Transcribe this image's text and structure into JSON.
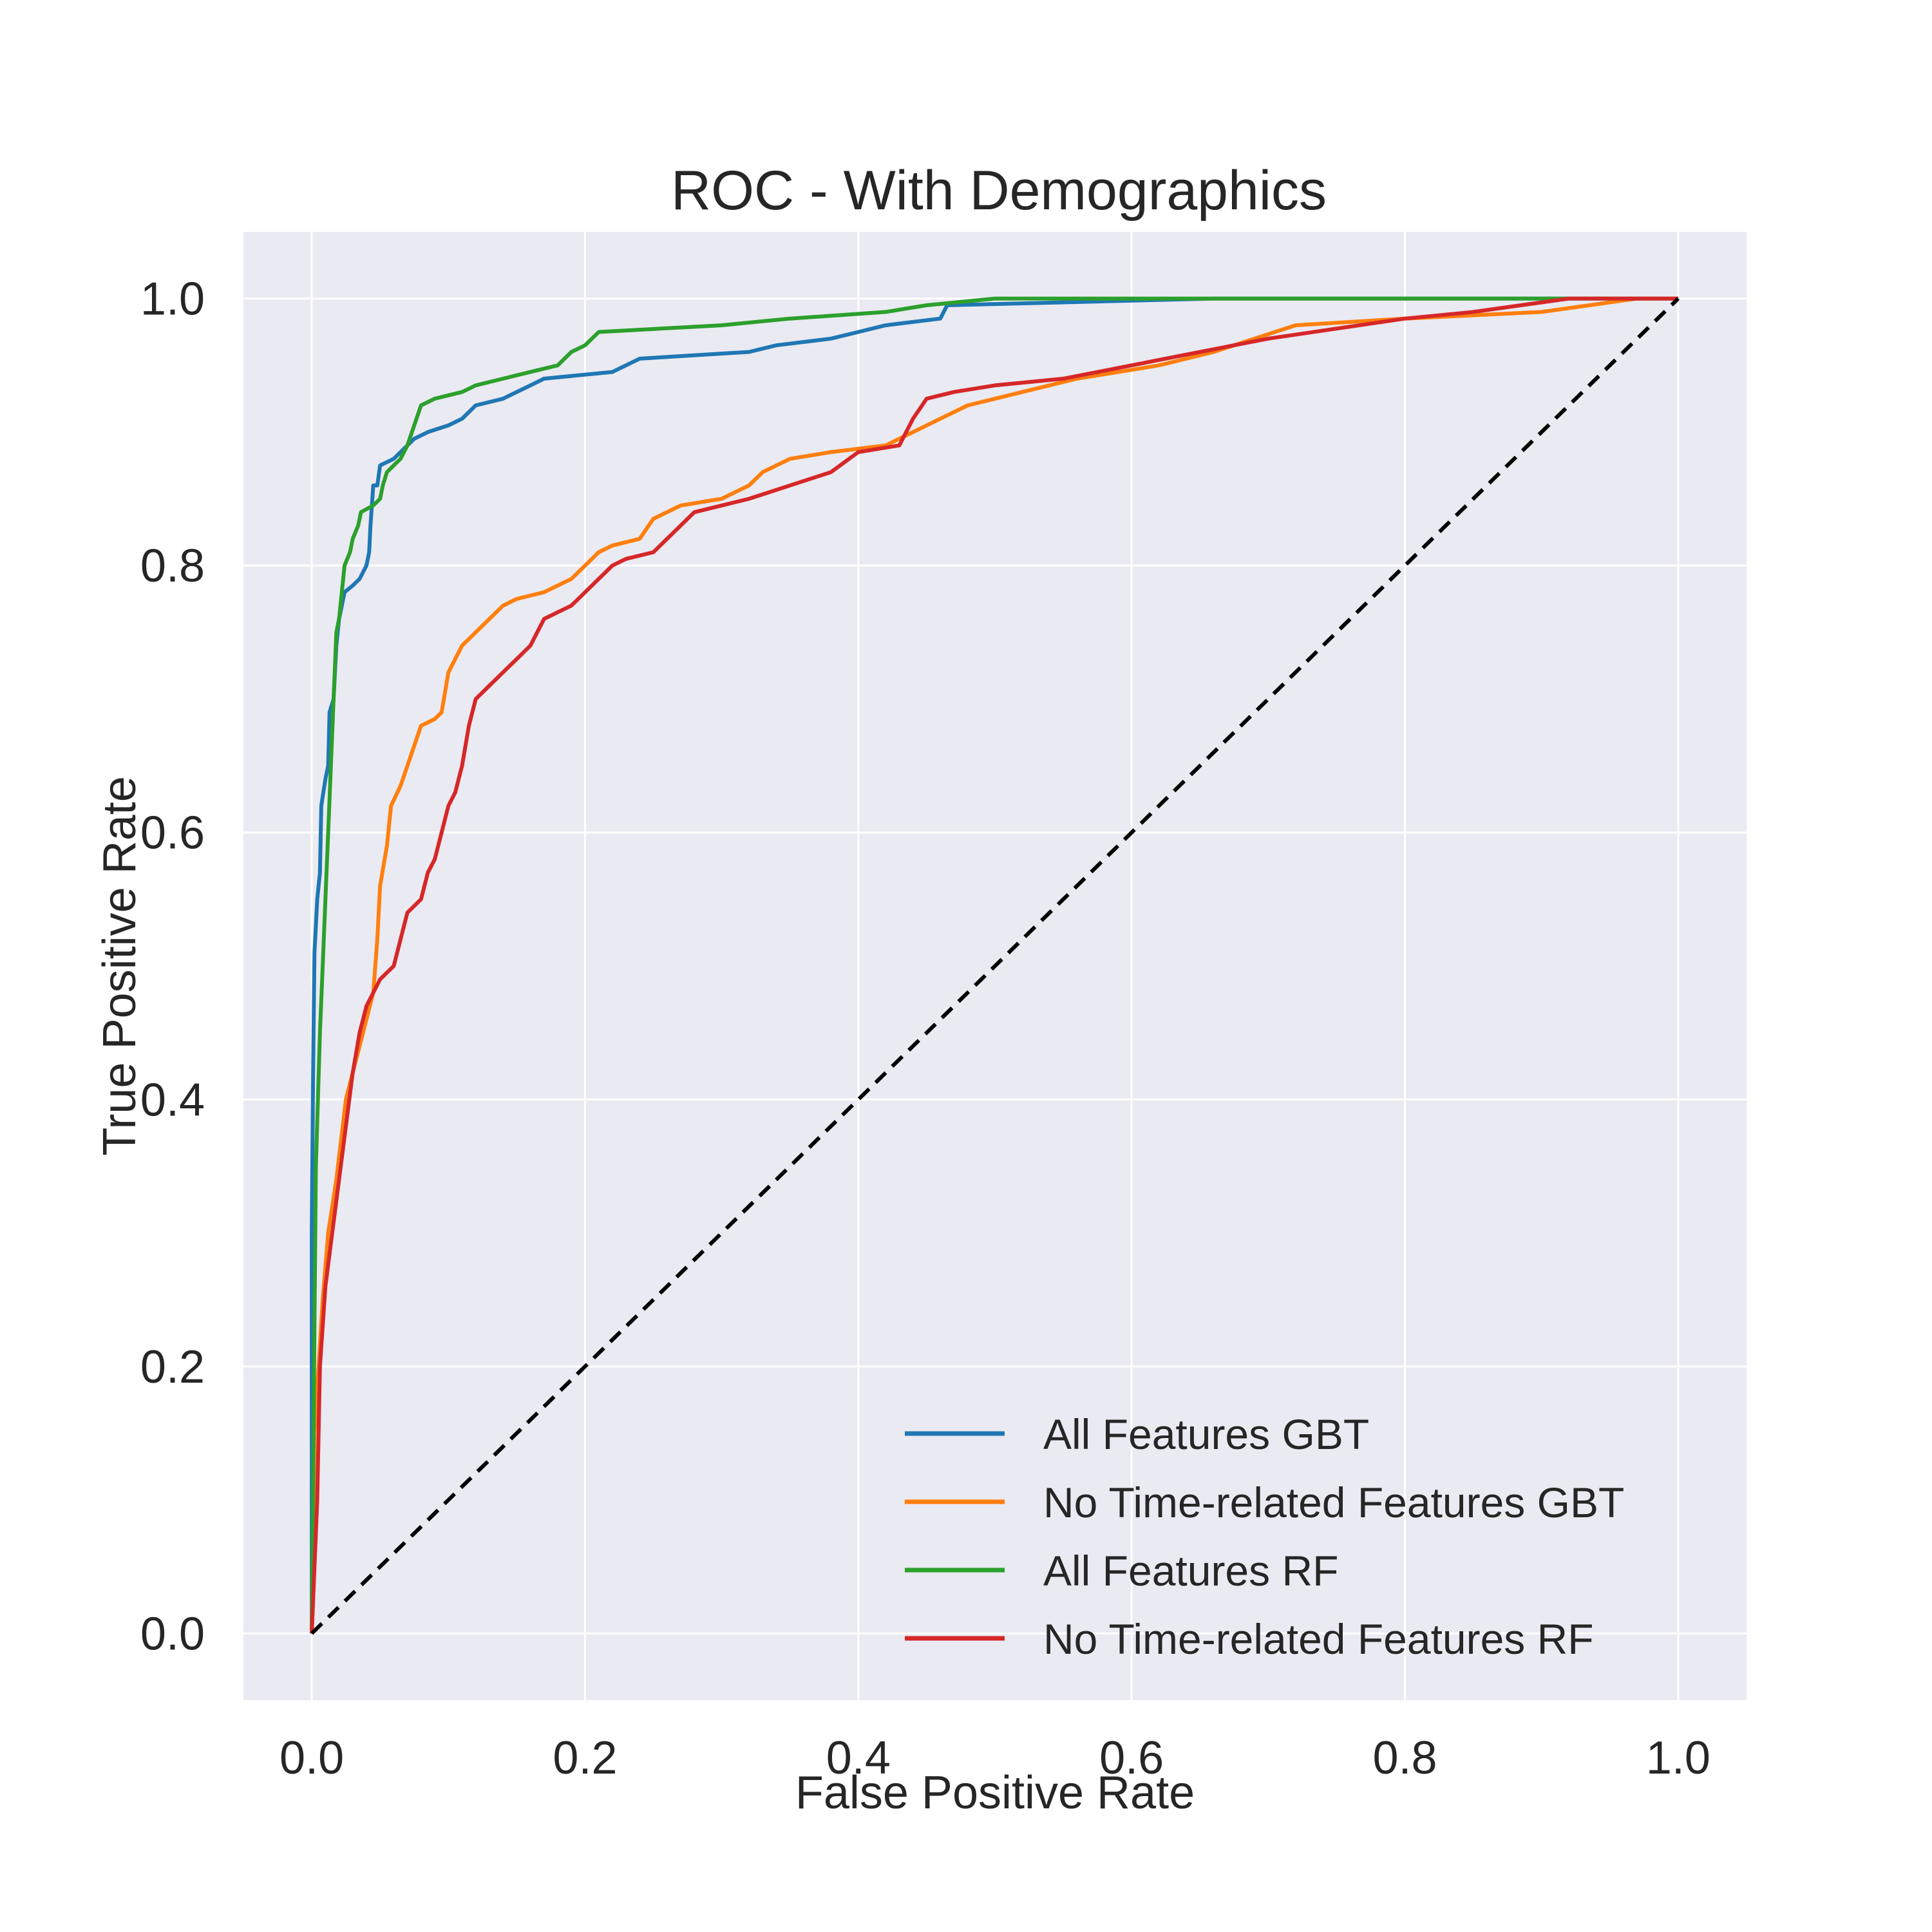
{
  "chart_data": {
    "type": "line",
    "title": "ROC - With Demographics",
    "xlabel": "False Positive Rate",
    "ylabel": "True Positive Rate",
    "xlim": [
      -0.05,
      1.05
    ],
    "ylim": [
      -0.05,
      1.05
    ],
    "xticks": [
      0.0,
      0.2,
      0.4,
      0.6,
      0.8,
      1.0
    ],
    "yticks": [
      0.0,
      0.2,
      0.4,
      0.6,
      0.8,
      1.0
    ],
    "xtick_labels": [
      "0.0",
      "0.2",
      "0.4",
      "0.6",
      "0.8",
      "1.0"
    ],
    "ytick_labels": [
      "0.0",
      "0.2",
      "0.4",
      "0.6",
      "0.8",
      "1.0"
    ],
    "grid": true,
    "legend_position": "lower-right",
    "series": [
      {
        "name": "All Features GBT",
        "color": "#1f77b4",
        "points": [
          [
            0,
            0
          ],
          [
            0,
            0.3
          ],
          [
            0.001,
            0.42
          ],
          [
            0.002,
            0.51
          ],
          [
            0.004,
            0.55
          ],
          [
            0.006,
            0.57
          ],
          [
            0.007,
            0.62
          ],
          [
            0.01,
            0.64
          ],
          [
            0.012,
            0.65
          ],
          [
            0.013,
            0.69
          ],
          [
            0.016,
            0.7
          ],
          [
            0.018,
            0.74
          ],
          [
            0.02,
            0.76
          ],
          [
            0.022,
            0.77
          ],
          [
            0.024,
            0.78
          ],
          [
            0.03,
            0.785
          ],
          [
            0.035,
            0.79
          ],
          [
            0.04,
            0.8
          ],
          [
            0.042,
            0.81
          ],
          [
            0.043,
            0.83
          ],
          [
            0.045,
            0.86
          ],
          [
            0.048,
            0.86
          ],
          [
            0.05,
            0.875
          ],
          [
            0.06,
            0.88
          ],
          [
            0.065,
            0.885
          ],
          [
            0.07,
            0.89
          ],
          [
            0.075,
            0.895
          ],
          [
            0.085,
            0.9
          ],
          [
            0.1,
            0.905
          ],
          [
            0.11,
            0.91
          ],
          [
            0.12,
            0.92
          ],
          [
            0.14,
            0.925
          ],
          [
            0.15,
            0.93
          ],
          [
            0.16,
            0.935
          ],
          [
            0.17,
            0.94
          ],
          [
            0.22,
            0.945
          ],
          [
            0.24,
            0.955
          ],
          [
            0.32,
            0.96
          ],
          [
            0.34,
            0.965
          ],
          [
            0.38,
            0.97
          ],
          [
            0.4,
            0.975
          ],
          [
            0.42,
            0.98
          ],
          [
            0.46,
            0.985
          ],
          [
            0.465,
            0.995
          ],
          [
            0.66,
            1.0
          ],
          [
            1.0,
            1.0
          ]
        ]
      },
      {
        "name": "No Time-related Features GBT",
        "color": "#ff7f0e",
        "points": [
          [
            0,
            0
          ],
          [
            0.002,
            0.15
          ],
          [
            0.008,
            0.25
          ],
          [
            0.012,
            0.3
          ],
          [
            0.018,
            0.34
          ],
          [
            0.025,
            0.4
          ],
          [
            0.03,
            0.42
          ],
          [
            0.035,
            0.44
          ],
          [
            0.04,
            0.46
          ],
          [
            0.045,
            0.48
          ],
          [
            0.048,
            0.52
          ],
          [
            0.05,
            0.56
          ],
          [
            0.055,
            0.59
          ],
          [
            0.058,
            0.62
          ],
          [
            0.065,
            0.635
          ],
          [
            0.07,
            0.65
          ],
          [
            0.075,
            0.665
          ],
          [
            0.08,
            0.68
          ],
          [
            0.09,
            0.685
          ],
          [
            0.095,
            0.69
          ],
          [
            0.1,
            0.72
          ],
          [
            0.105,
            0.73
          ],
          [
            0.11,
            0.74
          ],
          [
            0.12,
            0.75
          ],
          [
            0.13,
            0.76
          ],
          [
            0.14,
            0.77
          ],
          [
            0.15,
            0.775
          ],
          [
            0.17,
            0.78
          ],
          [
            0.19,
            0.79
          ],
          [
            0.2,
            0.8
          ],
          [
            0.21,
            0.81
          ],
          [
            0.22,
            0.815
          ],
          [
            0.24,
            0.82
          ],
          [
            0.25,
            0.835
          ],
          [
            0.27,
            0.845
          ],
          [
            0.3,
            0.85
          ],
          [
            0.32,
            0.86
          ],
          [
            0.33,
            0.87
          ],
          [
            0.35,
            0.88
          ],
          [
            0.38,
            0.885
          ],
          [
            0.42,
            0.89
          ],
          [
            0.44,
            0.9
          ],
          [
            0.46,
            0.91
          ],
          [
            0.48,
            0.92
          ],
          [
            0.52,
            0.93
          ],
          [
            0.56,
            0.94
          ],
          [
            0.62,
            0.95
          ],
          [
            0.66,
            0.96
          ],
          [
            0.72,
            0.98
          ],
          [
            0.8,
            0.985
          ],
          [
            0.9,
            0.99
          ],
          [
            0.97,
            1.0
          ],
          [
            1.0,
            1.0
          ]
        ]
      },
      {
        "name": "All Features RF",
        "color": "#2ca02c",
        "points": [
          [
            0,
            0
          ],
          [
            0.003,
            0.35
          ],
          [
            0.006,
            0.45
          ],
          [
            0.008,
            0.5
          ],
          [
            0.01,
            0.55
          ],
          [
            0.012,
            0.6
          ],
          [
            0.014,
            0.65
          ],
          [
            0.016,
            0.7
          ],
          [
            0.018,
            0.75
          ],
          [
            0.02,
            0.76
          ],
          [
            0.022,
            0.78
          ],
          [
            0.024,
            0.8
          ],
          [
            0.028,
            0.81
          ],
          [
            0.03,
            0.82
          ],
          [
            0.034,
            0.83
          ],
          [
            0.036,
            0.84
          ],
          [
            0.045,
            0.845
          ],
          [
            0.05,
            0.85
          ],
          [
            0.052,
            0.86
          ],
          [
            0.055,
            0.87
          ],
          [
            0.06,
            0.875
          ],
          [
            0.065,
            0.88
          ],
          [
            0.07,
            0.89
          ],
          [
            0.075,
            0.905
          ],
          [
            0.08,
            0.92
          ],
          [
            0.09,
            0.925
          ],
          [
            0.11,
            0.93
          ],
          [
            0.12,
            0.935
          ],
          [
            0.14,
            0.94
          ],
          [
            0.16,
            0.945
          ],
          [
            0.18,
            0.95
          ],
          [
            0.19,
            0.96
          ],
          [
            0.2,
            0.965
          ],
          [
            0.21,
            0.975
          ],
          [
            0.3,
            0.98
          ],
          [
            0.35,
            0.985
          ],
          [
            0.42,
            0.99
          ],
          [
            0.45,
            0.995
          ],
          [
            0.5,
            1.0
          ],
          [
            1.0,
            1.0
          ]
        ]
      },
      {
        "name": "No Time-related Features RF",
        "color": "#d62728",
        "points": [
          [
            0,
            0
          ],
          [
            0.004,
            0.1
          ],
          [
            0.006,
            0.2
          ],
          [
            0.01,
            0.26
          ],
          [
            0.015,
            0.3
          ],
          [
            0.02,
            0.34
          ],
          [
            0.025,
            0.38
          ],
          [
            0.03,
            0.42
          ],
          [
            0.035,
            0.45
          ],
          [
            0.04,
            0.47
          ],
          [
            0.045,
            0.48
          ],
          [
            0.05,
            0.49
          ],
          [
            0.06,
            0.5
          ],
          [
            0.065,
            0.52
          ],
          [
            0.07,
            0.54
          ],
          [
            0.08,
            0.55
          ],
          [
            0.085,
            0.57
          ],
          [
            0.09,
            0.58
          ],
          [
            0.095,
            0.6
          ],
          [
            0.1,
            0.62
          ],
          [
            0.105,
            0.63
          ],
          [
            0.11,
            0.65
          ],
          [
            0.115,
            0.68
          ],
          [
            0.12,
            0.7
          ],
          [
            0.13,
            0.71
          ],
          [
            0.14,
            0.72
          ],
          [
            0.15,
            0.73
          ],
          [
            0.16,
            0.74
          ],
          [
            0.17,
            0.76
          ],
          [
            0.18,
            0.765
          ],
          [
            0.19,
            0.77
          ],
          [
            0.2,
            0.78
          ],
          [
            0.21,
            0.79
          ],
          [
            0.22,
            0.8
          ],
          [
            0.23,
            0.805
          ],
          [
            0.25,
            0.81
          ],
          [
            0.26,
            0.82
          ],
          [
            0.27,
            0.83
          ],
          [
            0.28,
            0.84
          ],
          [
            0.3,
            0.845
          ],
          [
            0.32,
            0.85
          ],
          [
            0.35,
            0.86
          ],
          [
            0.38,
            0.87
          ],
          [
            0.4,
            0.885
          ],
          [
            0.43,
            0.89
          ],
          [
            0.44,
            0.91
          ],
          [
            0.45,
            0.925
          ],
          [
            0.47,
            0.93
          ],
          [
            0.5,
            0.935
          ],
          [
            0.55,
            0.94
          ],
          [
            0.6,
            0.95
          ],
          [
            0.65,
            0.96
          ],
          [
            0.7,
            0.97
          ],
          [
            0.8,
            0.985
          ],
          [
            0.85,
            0.99
          ],
          [
            0.92,
            1.0
          ],
          [
            1.0,
            1.0
          ]
        ]
      }
    ],
    "reference_line": {
      "color": "#000000",
      "style": "dashed",
      "points": [
        [
          0,
          0
        ],
        [
          1,
          1
        ]
      ]
    }
  }
}
